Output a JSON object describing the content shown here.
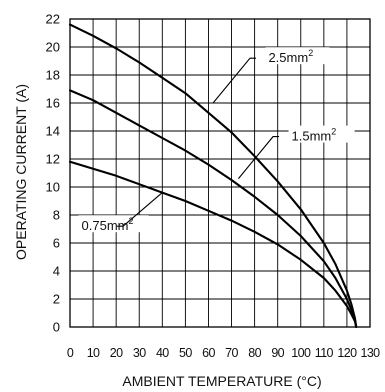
{
  "chart_data": {
    "type": "line",
    "xlabel": "AMBIENT TEMPERATURE (°C)",
    "ylabel": "OPERATING CURRENT (A)",
    "xlim": [
      0,
      130
    ],
    "ylim": [
      0,
      22
    ],
    "x_ticks": [
      0,
      10,
      20,
      30,
      40,
      50,
      60,
      70,
      80,
      90,
      100,
      110,
      120,
      130
    ],
    "y_ticks": [
      0,
      2,
      4,
      6,
      8,
      10,
      12,
      14,
      16,
      18,
      20,
      22
    ],
    "grid": true,
    "series": [
      {
        "name": "2.5mm",
        "name_sup": "2",
        "points": [
          [
            0,
            21.6
          ],
          [
            10,
            20.8
          ],
          [
            20,
            19.9
          ],
          [
            30,
            18.9
          ],
          [
            40,
            17.8
          ],
          [
            50,
            16.7
          ],
          [
            60,
            15.3
          ],
          [
            70,
            13.9
          ],
          [
            80,
            12.2
          ],
          [
            90,
            10.4
          ],
          [
            100,
            8.4
          ],
          [
            110,
            6.0
          ],
          [
            115,
            4.5
          ],
          [
            120,
            2.6
          ],
          [
            122,
            1.6
          ],
          [
            123.5,
            0.6
          ],
          [
            124,
            0
          ]
        ]
      },
      {
        "name": "1.5mm",
        "name_sup": "2",
        "points": [
          [
            0,
            16.9
          ],
          [
            10,
            16.2
          ],
          [
            20,
            15.3
          ],
          [
            30,
            14.4
          ],
          [
            40,
            13.5
          ],
          [
            50,
            12.6
          ],
          [
            60,
            11.6
          ],
          [
            70,
            10.5
          ],
          [
            80,
            9.3
          ],
          [
            90,
            8.0
          ],
          [
            100,
            6.5
          ],
          [
            110,
            4.7
          ],
          [
            115,
            3.5
          ],
          [
            120,
            2.0
          ],
          [
            122,
            1.2
          ],
          [
            123.5,
            0.5
          ],
          [
            124,
            0
          ]
        ]
      },
      {
        "name": "0.75mm",
        "name_sup": "2",
        "points": [
          [
            0,
            11.8
          ],
          [
            10,
            11.3
          ],
          [
            20,
            10.8
          ],
          [
            30,
            10.2
          ],
          [
            40,
            9.6
          ],
          [
            50,
            9.0
          ],
          [
            60,
            8.3
          ],
          [
            70,
            7.6
          ],
          [
            80,
            6.8
          ],
          [
            90,
            5.9
          ],
          [
            100,
            4.8
          ],
          [
            110,
            3.5
          ],
          [
            115,
            2.6
          ],
          [
            120,
            1.5
          ],
          [
            122,
            0.9
          ],
          [
            123.5,
            0.4
          ],
          [
            124,
            0
          ]
        ]
      }
    ]
  }
}
